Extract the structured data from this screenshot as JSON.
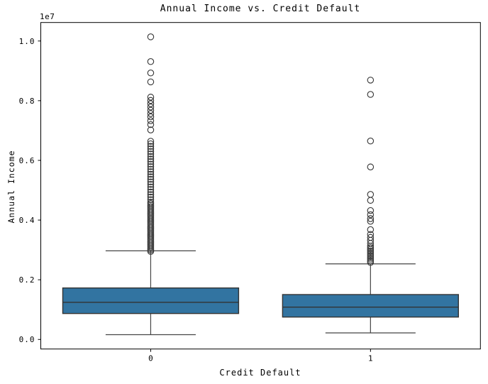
{
  "chart_data": {
    "type": "boxplot",
    "title": "Annual Income vs. Credit Default",
    "xlabel": "Credit Default",
    "ylabel": "Annual Income",
    "y_offset_label": "1e7",
    "categories": [
      "0",
      "1"
    ],
    "y_ticks": [
      "0.0",
      "0.2",
      "0.4",
      "0.6",
      "0.8",
      "1.0"
    ],
    "y_tick_values": [
      0,
      2000000,
      4000000,
      6000000,
      8000000,
      10000000
    ],
    "ylim": [
      -320000,
      10620000
    ],
    "xlim": [
      -0.5,
      1.5
    ],
    "box_width": 0.8,
    "cap_width": 0.41,
    "grid": false,
    "legend": null,
    "boxes": [
      {
        "category": "0",
        "whislo": 161000,
        "q1": 870000,
        "med": 1243000,
        "q3": 1725000,
        "whishi": 2970000,
        "fliers": [
          2950000,
          3000000,
          3050000,
          3100000,
          3150000,
          3200000,
          3250000,
          3300000,
          3350000,
          3400000,
          3450000,
          3500000,
          3550000,
          3600000,
          3650000,
          3700000,
          3750000,
          3800000,
          3850000,
          3900000,
          3950000,
          4000000,
          4050000,
          4100000,
          4150000,
          4200000,
          4250000,
          4300000,
          4350000,
          4400000,
          4450000,
          4500000,
          4550000,
          4600000,
          4685000,
          4770000,
          4855000,
          4940000,
          5025000,
          5110000,
          5195000,
          5280000,
          5365000,
          5450000,
          5535000,
          5620000,
          5705000,
          5790000,
          5875000,
          5960000,
          6045000,
          6130000,
          6215000,
          6300000,
          6385000,
          6470000,
          6555000,
          6640000,
          7020000,
          7200000,
          7330000,
          7460000,
          7570000,
          7680000,
          7790000,
          7900000,
          8010000,
          8120000,
          8630000,
          8930000,
          9310000,
          10140000
        ]
      },
      {
        "category": "1",
        "whislo": 220000,
        "q1": 751000,
        "med": 1084000,
        "q3": 1504000,
        "whishi": 2533000,
        "fliers": [
          2580000,
          2635000,
          2690000,
          2745000,
          2800000,
          2855000,
          2910000,
          2965000,
          3020000,
          3075000,
          3130000,
          3220000,
          3320000,
          3420000,
          3520000,
          3680000,
          3960000,
          4050000,
          4180000,
          4320000,
          4660000,
          4860000,
          5780000,
          6650000,
          8210000,
          8690000
        ]
      }
    ],
    "colors": {
      "box_fill": "#3274a1",
      "box_edge": "#333333",
      "median": "#333333",
      "whisker": "#454545",
      "flier_edge": "#3a3a3a",
      "axis": "#000000",
      "background": "#ffffff"
    }
  }
}
